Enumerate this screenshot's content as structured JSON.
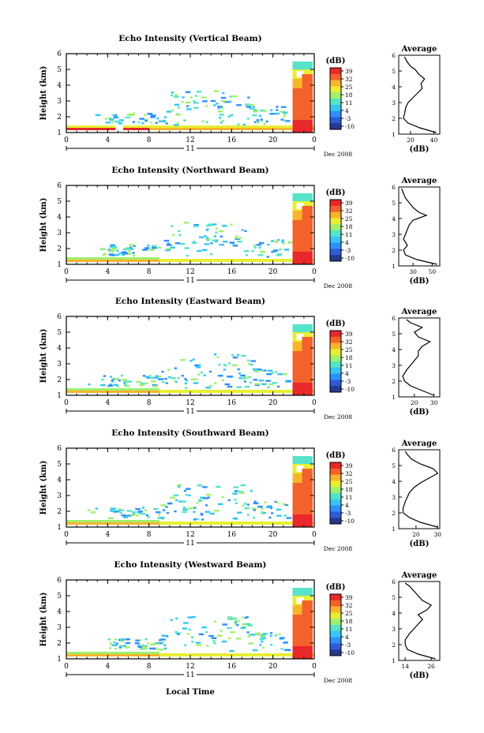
{
  "figure": {
    "xlabel": "Local Time",
    "date_label": "Dec 2008",
    "day_label": "11"
  },
  "colorbar": {
    "unit_label": "(dB)",
    "ticks": [
      "39",
      "32",
      "25",
      "18",
      "11",
      "4",
      "-3",
      "-10"
    ]
  },
  "average_panel": {
    "title": "Average",
    "xlabel": "(dB)"
  },
  "colors": {
    "scale": [
      "#243a8f",
      "#2f5bd6",
      "#2f8fff",
      "#36c6f2",
      "#56e3c9",
      "#9ff06d",
      "#e8ee33",
      "#f9b42e",
      "#f3622a",
      "#e8282a"
    ]
  },
  "chart_data": [
    {
      "type": "heatmap",
      "title": "Echo Intensity (Vertical Beam)",
      "ylabel": "Height (km)",
      "xlabel": "Local Time",
      "x_ticks": [
        "0",
        "4",
        "8",
        "12",
        "16",
        "20",
        "0"
      ],
      "y_ticks": [
        "1",
        "2",
        "3",
        "4",
        "5",
        "6"
      ],
      "xlim": [
        0,
        24
      ],
      "ylim": [
        1,
        6
      ],
      "zlim": [
        -10,
        39
      ],
      "profile": {
        "title": "Average",
        "xlabel": "(dB)",
        "x_ticks": [
          "20",
          "40"
        ],
        "xlim": [
          10,
          45
        ],
        "heights": [
          1.1,
          1.4,
          1.7,
          2.0,
          2.3,
          2.7,
          3.0,
          3.3,
          3.6,
          3.9,
          4.2,
          4.5,
          4.8,
          5.1,
          5.3,
          5.6,
          5.9
        ],
        "values": [
          42,
          28,
          18,
          14,
          15,
          16,
          18,
          22,
          26,
          30,
          29,
          32,
          27,
          24,
          20,
          17,
          15
        ]
      }
    },
    {
      "type": "heatmap",
      "title": "Echo Intensity (Northward Beam)",
      "ylabel": "Height (km)",
      "xlabel": "Local Time",
      "x_ticks": [
        "0",
        "4",
        "8",
        "12",
        "16",
        "20",
        "0"
      ],
      "y_ticks": [
        "1",
        "2",
        "3",
        "4",
        "5",
        "6"
      ],
      "xlim": [
        0,
        24
      ],
      "ylim": [
        1,
        6
      ],
      "zlim": [
        -10,
        39
      ],
      "profile": {
        "title": "Average",
        "xlabel": "(dB)",
        "x_ticks": [
          "30",
          "50"
        ],
        "xlim": [
          15,
          58
        ],
        "heights": [
          1.1,
          1.4,
          1.7,
          2.0,
          2.3,
          2.7,
          3.0,
          3.3,
          3.6,
          3.9,
          4.2,
          4.4,
          4.7,
          5.0,
          5.3,
          5.6,
          5.9
        ],
        "values": [
          55,
          34,
          22,
          20,
          24,
          20,
          22,
          24,
          26,
          30,
          44,
          36,
          30,
          26,
          22,
          20,
          18
        ]
      }
    },
    {
      "type": "heatmap",
      "title": "Echo Intensity (Eastward Beam)",
      "ylabel": "Height (km)",
      "xlabel": "Local Time",
      "x_ticks": [
        "0",
        "4",
        "8",
        "12",
        "16",
        "20",
        "0"
      ],
      "y_ticks": [
        "1",
        "2",
        "3",
        "4",
        "5",
        "6"
      ],
      "xlim": [
        0,
        24
      ],
      "ylim": [
        1,
        6
      ],
      "zlim": [
        -10,
        39
      ],
      "profile": {
        "title": "Average",
        "xlabel": "(dB)",
        "x_ticks": [
          "20",
          "30"
        ],
        "xlim": [
          12,
          33
        ],
        "heights": [
          1.1,
          1.4,
          1.7,
          2.0,
          2.3,
          2.7,
          3.0,
          3.3,
          3.6,
          3.9,
          4.2,
          4.5,
          4.8,
          5.1,
          5.4,
          5.7,
          5.9
        ],
        "values": [
          30,
          24,
          18,
          15,
          14,
          16,
          18,
          20,
          22,
          22,
          24,
          28,
          22,
          20,
          24,
          18,
          16
        ]
      }
    },
    {
      "type": "heatmap",
      "title": "Echo Intensity (Southward Beam)",
      "ylabel": "Height (km)",
      "xlabel": "Local Time",
      "x_ticks": [
        "0",
        "4",
        "8",
        "12",
        "16",
        "20",
        "0"
      ],
      "y_ticks": [
        "1",
        "2",
        "3",
        "4",
        "5",
        "6"
      ],
      "xlim": [
        0,
        24
      ],
      "ylim": [
        1,
        6
      ],
      "zlim": [
        -10,
        39
      ],
      "profile": {
        "title": "Average",
        "xlabel": "(dB)",
        "x_ticks": [
          "20",
          "30"
        ],
        "xlim": [
          12,
          31
        ],
        "heights": [
          1.1,
          1.4,
          1.7,
          2.0,
          2.3,
          2.7,
          3.0,
          3.3,
          3.6,
          3.9,
          4.2,
          4.5,
          4.8,
          5.1,
          5.4,
          5.7,
          5.9
        ],
        "values": [
          30,
          22,
          17,
          14,
          14,
          15,
          16,
          17,
          19,
          22,
          26,
          30,
          28,
          22,
          18,
          16,
          15
        ]
      }
    },
    {
      "type": "heatmap",
      "title": "Echo Intensity (Westward Beam)",
      "ylabel": "Height (km)",
      "xlabel": "Local Time",
      "x_ticks": [
        "0",
        "4",
        "8",
        "12",
        "16",
        "20",
        "0"
      ],
      "y_ticks": [
        "1",
        "2",
        "3",
        "4",
        "5",
        "6"
      ],
      "xlim": [
        0,
        24
      ],
      "ylim": [
        1,
        6
      ],
      "zlim": [
        -10,
        39
      ],
      "profile": {
        "title": "Average",
        "xlabel": "(dB)",
        "x_ticks": [
          "14",
          "26"
        ],
        "xlim": [
          11,
          30
        ],
        "heights": [
          1.1,
          1.4,
          1.7,
          2.0,
          2.3,
          2.7,
          3.0,
          3.3,
          3.6,
          3.9,
          4.2,
          4.5,
          4.8,
          5.1,
          5.4,
          5.7,
          5.9
        ],
        "values": [
          28,
          20,
          15,
          14,
          14,
          16,
          18,
          20,
          22,
          20,
          24,
          26,
          22,
          20,
          18,
          16,
          14
        ]
      }
    }
  ]
}
